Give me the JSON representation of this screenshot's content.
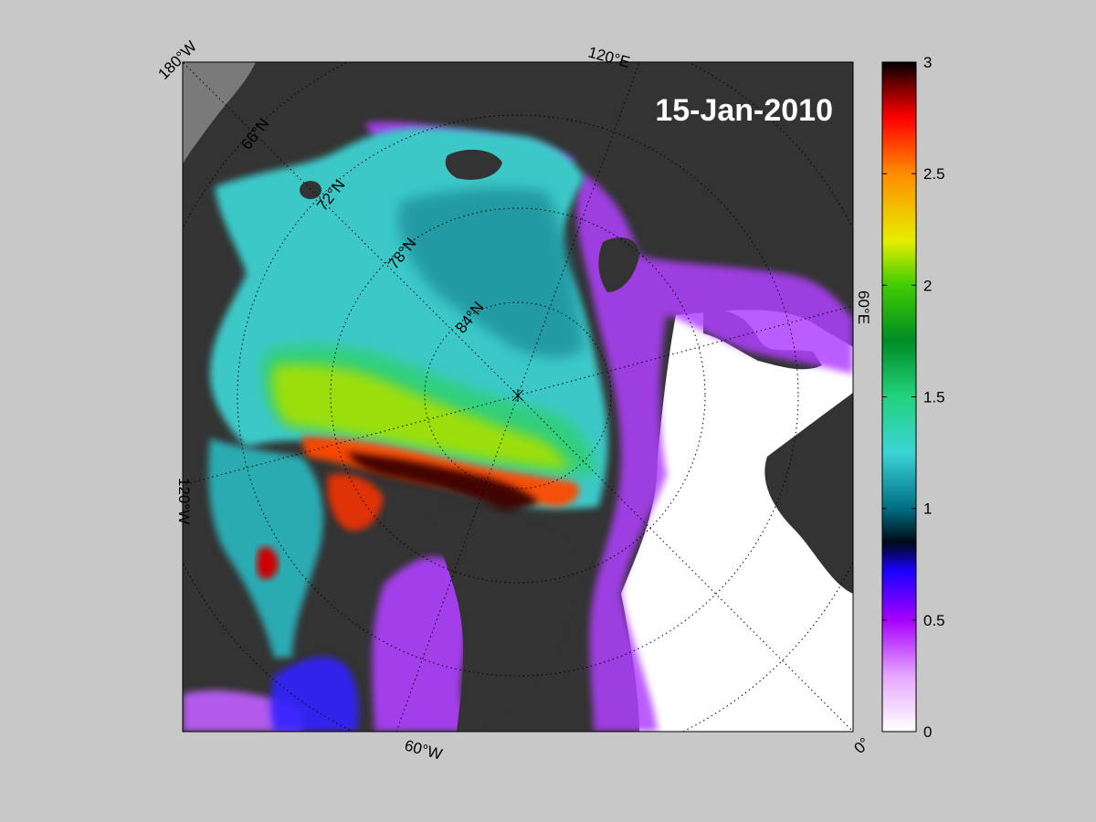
{
  "map": {
    "date_label": "15-Jan-2010",
    "meridian_labels": [
      "180°W",
      "120°E",
      "60°E",
      "0°",
      "60°W",
      "120°W"
    ],
    "parallel_labels": [
      "66°N",
      "72°N",
      "78°N",
      "84°N"
    ],
    "colors": {
      "background": "#c8c8c8",
      "land": "#333333",
      "open_water": "#ffffff",
      "grid": "#000000",
      "date_text": "#ffffff"
    }
  },
  "colorbar": {
    "min": 0,
    "max": 3,
    "tick_labels": [
      "0",
      "0.5",
      "1",
      "1.5",
      "2",
      "2.5",
      "3"
    ],
    "stops": [
      {
        "v": 0.0,
        "c": "#ffffff"
      },
      {
        "v": 0.25,
        "c": "#e6a6ff"
      },
      {
        "v": 0.5,
        "c": "#a600ff"
      },
      {
        "v": 0.72,
        "c": "#1a00ff"
      },
      {
        "v": 0.85,
        "c": "#000a14"
      },
      {
        "v": 1.0,
        "c": "#006e84"
      },
      {
        "v": 1.25,
        "c": "#3cd4d6"
      },
      {
        "v": 1.5,
        "c": "#22d27c"
      },
      {
        "v": 1.75,
        "c": "#008c26"
      },
      {
        "v": 2.0,
        "c": "#40cc00"
      },
      {
        "v": 2.2,
        "c": "#e6ee00"
      },
      {
        "v": 2.5,
        "c": "#ff8c00"
      },
      {
        "v": 2.75,
        "c": "#ff0000"
      },
      {
        "v": 2.9,
        "c": "#6e0000"
      },
      {
        "v": 3.0,
        "c": "#000000"
      }
    ]
  }
}
